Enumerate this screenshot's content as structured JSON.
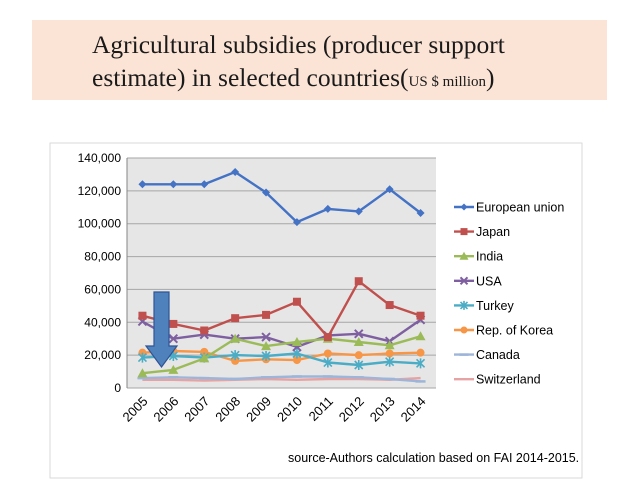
{
  "header": {
    "title_main": "Agricultural subsidies (producer support estimate) in selected countries(",
    "title_unit": "US $ million",
    "title_close": ")"
  },
  "footer": {
    "source": "source-Authors calculation based on FAI 2014-2015."
  },
  "chart_data": {
    "type": "line",
    "title": "Agricultural subsidies (producer support estimate) in selected countries(US $ million)",
    "xlabel": "",
    "ylabel": "",
    "x": [
      "2005",
      "2006",
      "2007",
      "2008",
      "2009",
      "2010",
      "2011",
      "2012",
      "2013",
      "2014"
    ],
    "ylim": [
      0,
      140000
    ],
    "yticks": [
      0,
      20000,
      40000,
      60000,
      80000,
      100000,
      120000,
      140000
    ],
    "ytick_labels": [
      "0",
      "20,000",
      "40,000",
      "60,000",
      "80,000",
      "100,000",
      "120,000",
      "140,000"
    ],
    "grid": true,
    "legend_position": "right",
    "series": [
      {
        "name": "European union",
        "color": "#4472c4",
        "marker": "diamond",
        "values": [
          124000,
          124000,
          124000,
          131500,
          119000,
          101000,
          109000,
          107500,
          121000,
          106500
        ]
      },
      {
        "name": "Japan",
        "color": "#c0504d",
        "marker": "square",
        "values": [
          44000,
          39000,
          35000,
          42500,
          44500,
          52500,
          31000,
          65000,
          50500,
          44000
        ]
      },
      {
        "name": "India",
        "color": "#9bbb59",
        "marker": "triangle",
        "values": [
          9000,
          11000,
          18000,
          30000,
          25500,
          28000,
          30000,
          28000,
          26000,
          31500
        ]
      },
      {
        "name": "USA",
        "color": "#7e5fa0",
        "marker": "x",
        "values": [
          40500,
          30000,
          32500,
          30000,
          31000,
          25000,
          32000,
          33000,
          28500,
          41500
        ]
      },
      {
        "name": "Turkey",
        "color": "#4bacc6",
        "marker": "star",
        "values": [
          18500,
          19500,
          18500,
          20000,
          19500,
          21000,
          15500,
          14000,
          16000,
          15000
        ]
      },
      {
        "name": "Rep. of Korea",
        "color": "#f79646",
        "marker": "circle",
        "values": [
          21500,
          22500,
          22000,
          16500,
          17500,
          17000,
          21000,
          20000,
          21000,
          21500
        ]
      },
      {
        "name": "Canada",
        "color": "#9db5d8",
        "marker": "dash",
        "values": [
          6000,
          6500,
          6000,
          5500,
          6500,
          7000,
          7000,
          6500,
          5500,
          4000
        ]
      },
      {
        "name": "Switzerland",
        "color": "#e6a3a3",
        "marker": "none",
        "values": [
          5000,
          5000,
          4500,
          5000,
          5500,
          5000,
          5500,
          5500,
          5000,
          6000
        ]
      }
    ]
  }
}
